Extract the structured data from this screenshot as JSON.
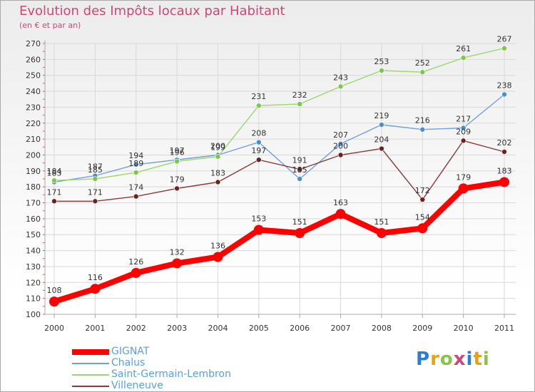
{
  "header": {
    "title": "Evolution des Impôts locaux par Habitant",
    "subtitle": "(en € et par an)"
  },
  "brand": {
    "name": "Proxiti"
  },
  "colors": {
    "title": "#d0457a",
    "axis": "#a9a9a9",
    "grid": "#d8d8d8",
    "label": "#333333",
    "legend_text": "#5aa0e0"
  },
  "chart_data": {
    "type": "line",
    "title": "Evolution des Impôts locaux par Habitant",
    "subtitle": "(en € et par an)",
    "xlabel": "",
    "ylabel": "",
    "x": [
      "2000",
      "2001",
      "2002",
      "2003",
      "2004",
      "2005",
      "2006",
      "2007",
      "2008",
      "2009",
      "2010",
      "2011"
    ],
    "ylim": [
      100,
      270
    ],
    "yticks": [
      100,
      110,
      120,
      130,
      140,
      150,
      160,
      170,
      180,
      190,
      200,
      210,
      220,
      230,
      240,
      250,
      260,
      270
    ],
    "grid": true,
    "legend_position": "bottom-left",
    "series": [
      {
        "name": "GIGNAT",
        "color": "#ff0000",
        "marker_color": "#ff0000",
        "thick": true,
        "values": [
          108,
          116,
          126,
          132,
          136,
          153,
          151,
          163,
          151,
          154,
          179,
          183
        ]
      },
      {
        "name": "Chalus",
        "color": "#6fa0d8",
        "marker_color": "#4a8fd0",
        "thick": false,
        "values": [
          183,
          187,
          194,
          197,
          200,
          208,
          185,
          207,
          219,
          216,
          217,
          238
        ]
      },
      {
        "name": "Saint-Germain-Lembron",
        "color": "#9ad86c",
        "marker_color": "#7cc84a",
        "thick": false,
        "values": [
          184,
          185,
          189,
          196,
          199,
          231,
          232,
          243,
          253,
          252,
          261,
          267
        ]
      },
      {
        "name": "Villeneuve",
        "color": "#8a3a3a",
        "marker_color": "#6b2222",
        "thick": false,
        "values": [
          171,
          171,
          174,
          179,
          183,
          197,
          191,
          200,
          204,
          172,
          209,
          202
        ]
      }
    ]
  }
}
